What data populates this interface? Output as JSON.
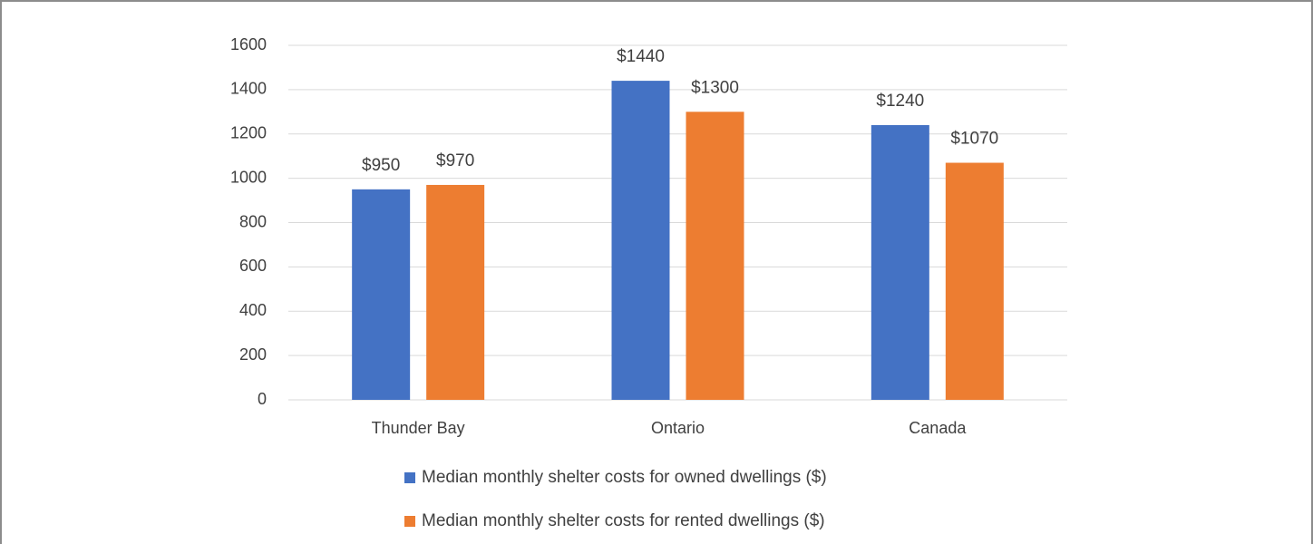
{
  "chart_data": {
    "type": "bar",
    "categories": [
      "Thunder Bay",
      "Ontario",
      "Canada"
    ],
    "series": [
      {
        "name": "Median monthly shelter costs for owned dwellings ($)",
        "color": "#4472c4",
        "values": [
          950,
          1440,
          1240
        ],
        "value_labels": [
          "$950",
          "$1440",
          "$1240"
        ]
      },
      {
        "name": "Median monthly shelter costs for rented dwellings ($)",
        "color": "#ed7d31",
        "values": [
          970,
          1300,
          1070
        ],
        "value_labels": [
          "$970",
          "$1300",
          "$1070"
        ]
      }
    ],
    "ylim": [
      0,
      1600
    ],
    "yticks": [
      0,
      200,
      400,
      600,
      800,
      1000,
      1200,
      1400,
      1600
    ],
    "grid": true,
    "legend": "bottom"
  }
}
